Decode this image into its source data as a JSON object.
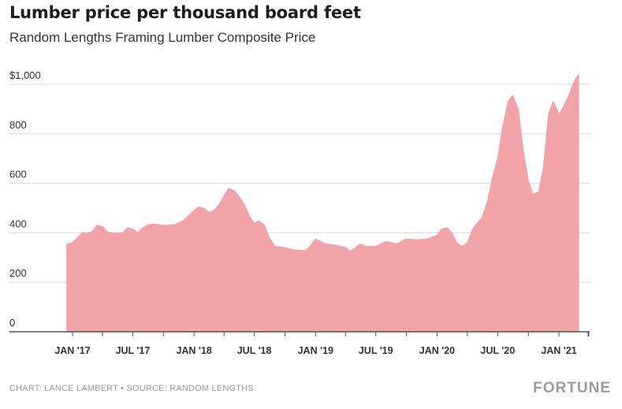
{
  "header": {
    "title": "Lumber price per thousand board feet",
    "subtitle": "Random Lengths Framing Lumber Composite Price"
  },
  "footer": {
    "credit": "CHART: LANCE LAMBERT • SOURCE: RANDOM LENGTHS",
    "brand": "FORTUNE"
  },
  "colors": {
    "area_fill": "#f2a3a8",
    "grid": "#d8d8d8",
    "baseline": "#555555",
    "text": "#333333"
  },
  "chart_data": {
    "type": "area",
    "title": "Lumber price per thousand board feet",
    "subtitle": "Random Lengths Framing Lumber Composite Price",
    "xlabel": "",
    "ylabel": "",
    "ylim": [
      0,
      1000
    ],
    "y_ticks": [
      {
        "value": 1000,
        "label": "$1,000"
      },
      {
        "value": 800,
        "label": "800"
      },
      {
        "value": 600,
        "label": "600"
      },
      {
        "value": 400,
        "label": "400"
      },
      {
        "value": 200,
        "label": "200"
      },
      {
        "value": 0,
        "label": "0"
      }
    ],
    "x_ticks": [
      {
        "date": "2017-01",
        "label": "JAN '17"
      },
      {
        "date": "2017-07",
        "label": "JUL '17"
      },
      {
        "date": "2018-01",
        "label": "JAN '18"
      },
      {
        "date": "2018-07",
        "label": "JUL '18"
      },
      {
        "date": "2019-01",
        "label": "JAN '19"
      },
      {
        "date": "2019-07",
        "label": "JUL '19"
      },
      {
        "date": "2020-01",
        "label": "JAN '20"
      },
      {
        "date": "2020-07",
        "label": "JUL '20"
      },
      {
        "date": "2021-01",
        "label": "JAN '21"
      }
    ],
    "grid": true,
    "series": [
      {
        "points": [
          [
            "2016-12-15",
            355
          ],
          [
            "2017-01-01",
            360
          ],
          [
            "2017-01-15",
            380
          ],
          [
            "2017-02-01",
            402
          ],
          [
            "2017-02-15",
            398
          ],
          [
            "2017-03-01",
            405
          ],
          [
            "2017-03-15",
            430
          ],
          [
            "2017-04-01",
            425
          ],
          [
            "2017-04-15",
            405
          ],
          [
            "2017-05-01",
            398
          ],
          [
            "2017-06-01",
            400
          ],
          [
            "2017-06-15",
            420
          ],
          [
            "2017-07-01",
            415
          ],
          [
            "2017-07-15",
            400
          ],
          [
            "2017-08-01",
            420
          ],
          [
            "2017-08-15",
            432
          ],
          [
            "2017-09-01",
            435
          ],
          [
            "2017-10-01",
            430
          ],
          [
            "2017-11-01",
            432
          ],
          [
            "2017-12-01",
            450
          ],
          [
            "2018-01-01",
            490
          ],
          [
            "2018-01-15",
            505
          ],
          [
            "2018-02-01",
            498
          ],
          [
            "2018-02-15",
            482
          ],
          [
            "2018-03-01",
            490
          ],
          [
            "2018-03-15",
            510
          ],
          [
            "2018-04-01",
            550
          ],
          [
            "2018-04-15",
            580
          ],
          [
            "2018-05-01",
            572
          ],
          [
            "2018-05-15",
            548
          ],
          [
            "2018-06-01",
            515
          ],
          [
            "2018-06-15",
            470
          ],
          [
            "2018-07-01",
            438
          ],
          [
            "2018-07-15",
            448
          ],
          [
            "2018-08-01",
            430
          ],
          [
            "2018-08-15",
            380
          ],
          [
            "2018-09-01",
            345
          ],
          [
            "2018-10-01",
            340
          ],
          [
            "2018-11-01",
            330
          ],
          [
            "2018-12-01",
            328
          ],
          [
            "2018-12-15",
            345
          ],
          [
            "2019-01-01",
            375
          ],
          [
            "2019-01-15",
            365
          ],
          [
            "2019-02-01",
            355
          ],
          [
            "2019-03-01",
            350
          ],
          [
            "2019-04-01",
            340
          ],
          [
            "2019-04-15",
            325
          ],
          [
            "2019-05-01",
            340
          ],
          [
            "2019-05-15",
            355
          ],
          [
            "2019-06-01",
            345
          ],
          [
            "2019-07-01",
            345
          ],
          [
            "2019-08-01",
            365
          ],
          [
            "2019-09-01",
            355
          ],
          [
            "2019-10-01",
            375
          ],
          [
            "2019-11-01",
            372
          ],
          [
            "2019-12-01",
            375
          ],
          [
            "2020-01-01",
            390
          ],
          [
            "2020-01-15",
            415
          ],
          [
            "2020-02-01",
            420
          ],
          [
            "2020-02-15",
            398
          ],
          [
            "2020-03-01",
            360
          ],
          [
            "2020-03-15",
            345
          ],
          [
            "2020-04-01",
            360
          ],
          [
            "2020-04-15",
            410
          ],
          [
            "2020-05-01",
            440
          ],
          [
            "2020-05-15",
            460
          ],
          [
            "2020-06-01",
            530
          ],
          [
            "2020-06-15",
            620
          ],
          [
            "2020-07-01",
            700
          ],
          [
            "2020-07-15",
            820
          ],
          [
            "2020-08-01",
            930
          ],
          [
            "2020-08-15",
            955
          ],
          [
            "2020-09-01",
            900
          ],
          [
            "2020-09-15",
            740
          ],
          [
            "2020-10-01",
            610
          ],
          [
            "2020-10-15",
            555
          ],
          [
            "2020-11-01",
            565
          ],
          [
            "2020-11-15",
            660
          ],
          [
            "2020-12-01",
            880
          ],
          [
            "2020-12-15",
            930
          ],
          [
            "2021-01-01",
            880
          ],
          [
            "2021-01-15",
            910
          ],
          [
            "2021-02-01",
            960
          ],
          [
            "2021-02-15",
            1010
          ],
          [
            "2021-03-01",
            1050
          ]
        ]
      }
    ]
  }
}
